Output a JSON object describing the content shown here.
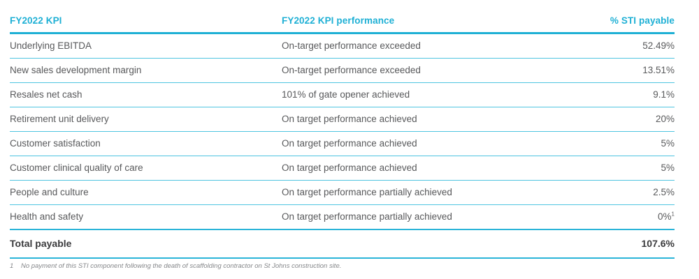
{
  "accent_color": "#1fb0d5",
  "thin_line_color": "#4ec4e0",
  "body_text_color": "#58595b",
  "table": {
    "columns": [
      "FY2022 KPI",
      "FY2022 KPI performance",
      "% STI payable"
    ],
    "rows": [
      {
        "kpi": "Underlying EBITDA",
        "performance": "On-target performance exceeded",
        "payable": "52.49%"
      },
      {
        "kpi": "New sales development margin",
        "performance": "On-target performance exceeded",
        "payable": "13.51%"
      },
      {
        "kpi": "Resales net cash",
        "performance": "101% of gate opener achieved",
        "payable": "9.1%"
      },
      {
        "kpi": "Retirement unit delivery",
        "performance": "On target performance achieved",
        "payable": "20%"
      },
      {
        "kpi": "Customer satisfaction",
        "performance": "On target performance achieved",
        "payable": "5%"
      },
      {
        "kpi": "Customer clinical quality of care",
        "performance": "On target performance achieved",
        "payable": "5%"
      },
      {
        "kpi": "People and culture",
        "performance": "On target performance partially achieved",
        "payable": "2.5%"
      },
      {
        "kpi": "Health and safety",
        "performance": "On target performance partially achieved",
        "payable": "0%",
        "payable_footnote_marker": "1"
      }
    ],
    "total": {
      "label": "Total payable",
      "payable": "107.6%"
    }
  },
  "footnote": {
    "marker": "1",
    "text": "No payment of this STI component following the death of scaffolding contractor on St Johns construction site."
  }
}
